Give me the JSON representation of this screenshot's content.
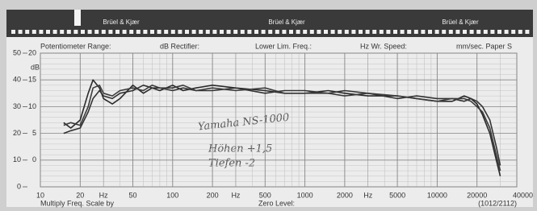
{
  "chart_data": {
    "type": "line",
    "brand_labels": [
      "Brüel & Kjær",
      "Brüel & Kjær",
      "Brüel & Kjær"
    ],
    "header_fields": [
      "Potentiometer Range:",
      "dB Rectifier:",
      "Lower Lim. Freq.:",
      "Hz Wr. Speed:",
      "mm/sec. Paper S"
    ],
    "footer_left": "Multiply Freq. Scale by",
    "footer_center": "Zero Level:",
    "footer_right": "(1012/2112)",
    "y_unit": "dB",
    "annotations": [
      "Yamaha NS-1000",
      "Höhen +1,5",
      "Tiefen -2"
    ],
    "log_x": true,
    "grid": true,
    "xlim": [
      10,
      40000
    ],
    "xticks": [
      10,
      20,
      {
        "value": 30,
        "label": "Hz"
      },
      50,
      100,
      200,
      {
        "value": 300,
        "label": "Hz"
      },
      500,
      1000,
      2000,
      {
        "value": 3000,
        "label": "Hz"
      },
      5000,
      10000,
      20000,
      40000
    ],
    "ylim": [
      0,
      50
    ],
    "yticks": [
      0,
      10,
      20,
      30,
      40,
      50
    ],
    "y2lim": [
      -5,
      20
    ],
    "y2ticks": [
      0,
      5,
      10,
      15,
      20
    ],
    "x": [
      15,
      17,
      20,
      23,
      25,
      28,
      30,
      35,
      40,
      50,
      60,
      70,
      80,
      100,
      120,
      150,
      200,
      300,
      500,
      700,
      1000,
      1500,
      2000,
      3000,
      5000,
      7000,
      10000,
      13000,
      16000,
      18000,
      20000,
      22000,
      25000,
      28000,
      30000
    ],
    "series": [
      {
        "color": "#2a2a2a",
        "values": [
          24,
          22,
          25,
          35,
          40,
          37,
          33,
          31,
          33,
          38,
          35,
          37,
          36,
          38,
          36,
          37,
          38,
          37,
          36,
          35,
          35,
          36,
          35,
          34,
          34,
          33,
          32,
          32,
          34,
          33,
          31,
          27,
          20,
          10,
          4
        ]
      },
      {
        "color": "#333333",
        "values": [
          20,
          21,
          22,
          28,
          33,
          36,
          34,
          33,
          35,
          36,
          38,
          37,
          37,
          36,
          37,
          36,
          36,
          37,
          35,
          36,
          36,
          35,
          36,
          35,
          33,
          34,
          33,
          33,
          32,
          33,
          32,
          30,
          25,
          15,
          8
        ]
      },
      {
        "color": "#3c3c3c",
        "values": [
          23,
          24,
          23,
          30,
          37,
          38,
          35,
          34,
          36,
          37,
          36,
          38,
          37,
          37,
          38,
          36,
          37,
          36,
          37,
          35,
          35,
          35,
          34,
          35,
          34,
          33,
          32,
          33,
          33,
          32,
          30,
          28,
          22,
          12,
          6
        ]
      }
    ]
  }
}
